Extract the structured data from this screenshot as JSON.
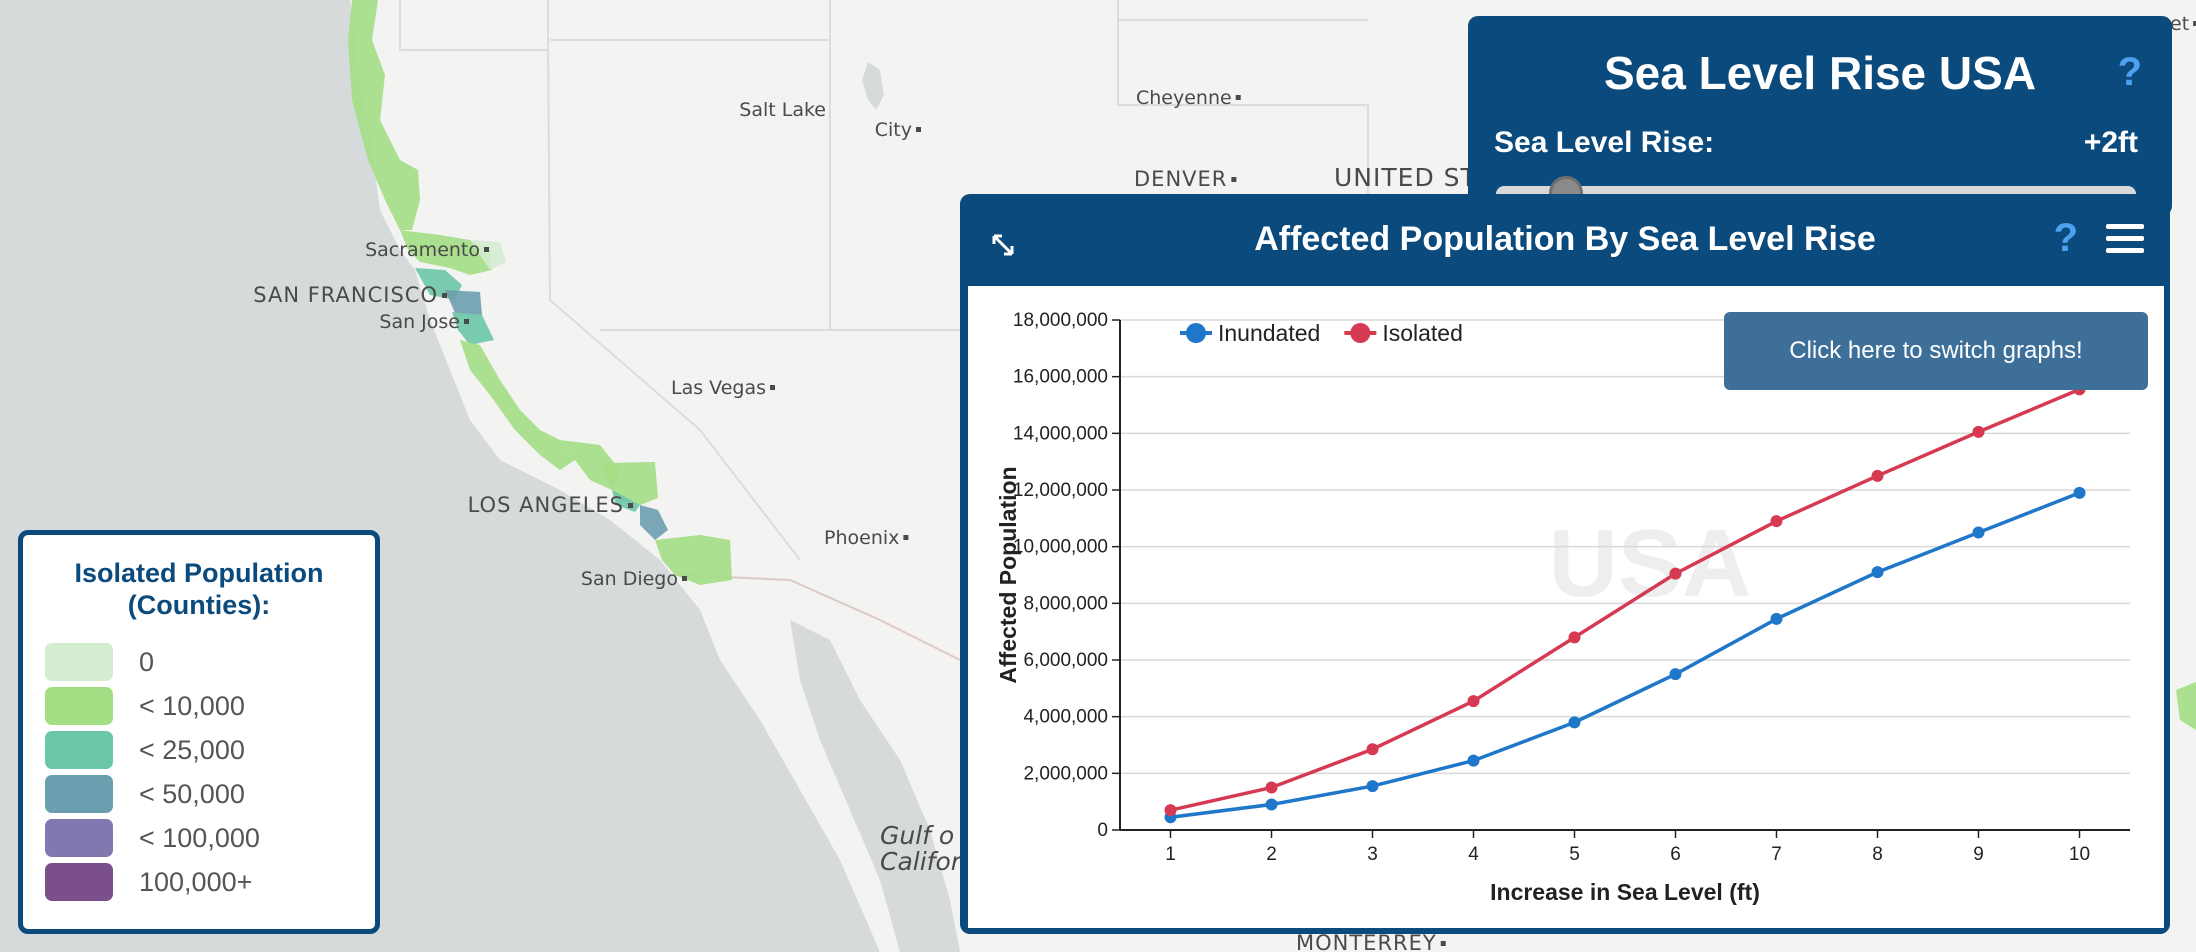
{
  "map": {
    "cities": [
      {
        "name": "Salt Lake",
        "style": "small"
      },
      {
        "name": "City",
        "style": "small"
      },
      {
        "name": "Cheyenne",
        "style": "small"
      },
      {
        "name": "DENVER",
        "style": "big"
      },
      {
        "name": "UNITED ST",
        "style": "country"
      },
      {
        "name": "Sacramento",
        "style": "small"
      },
      {
        "name": "SAN FRANCISCO",
        "style": "big"
      },
      {
        "name": "San Jose",
        "style": "small"
      },
      {
        "name": "Las Vegas",
        "style": "small"
      },
      {
        "name": "LOS ANGELES",
        "style": "big"
      },
      {
        "name": "Phoenix",
        "style": "small"
      },
      {
        "name": "San Diego",
        "style": "small"
      },
      {
        "name": "Gulf o",
        "style": "water"
      },
      {
        "name": "Californ",
        "style": "water"
      },
      {
        "name": "MONTERREY",
        "style": "big"
      },
      {
        "name": "et",
        "style": "small"
      }
    ],
    "colors": {
      "land": "#f3f3f2",
      "water": "#d6dadb",
      "border": "#dcc8c8"
    }
  },
  "legend": {
    "title_line1": "Isolated Population",
    "title_line2": "(Counties):",
    "items": [
      {
        "label": "0",
        "color": "#d4ecd0"
      },
      {
        "label": "< 10,000",
        "color": "#a3de85"
      },
      {
        "label": "< 25,000",
        "color": "#6cc6a8"
      },
      {
        "label": "< 50,000",
        "color": "#6b9eaf"
      },
      {
        "label": "< 100,000",
        "color": "#8079b0"
      },
      {
        "label": "100,000+",
        "color": "#7b4f8c"
      }
    ]
  },
  "slr_panel": {
    "title": "Sea Level Rise USA",
    "help": "?",
    "label": "Sea Level Rise:",
    "value": "+2ft",
    "slider_fraction": 0.11
  },
  "graph_panel": {
    "title": "Affected Population By Sea Level Rise",
    "help": "?",
    "tooltip": "Click here to switch graphs!"
  },
  "chart_data": {
    "type": "line",
    "x": [
      1,
      2,
      3,
      4,
      5,
      6,
      7,
      8,
      9,
      10
    ],
    "xlabel": "Increase in Sea Level (ft)",
    "ylabel": "Affected Population",
    "ylim": [
      0,
      18000000
    ],
    "yticks": [
      "0",
      "2,000,000",
      "4,000,000",
      "6,000,000",
      "8,000,000",
      "10,000,000",
      "12,000,000",
      "14,000,000",
      "16,000,000",
      "18,000,000"
    ],
    "watermark": "USA",
    "grid": true,
    "legend_position": "top-left",
    "series": [
      {
        "name": "Inundated",
        "color": "#1f77c9",
        "values": [
          450000,
          900000,
          1550000,
          2450000,
          3800000,
          5500000,
          7450000,
          9100000,
          10500000,
          11900000
        ]
      },
      {
        "name": "Isolated",
        "color": "#d63a52",
        "values": [
          700000,
          1500000,
          2850000,
          4550000,
          6800000,
          9050000,
          10900000,
          12500000,
          14050000,
          15550000
        ]
      }
    ]
  }
}
